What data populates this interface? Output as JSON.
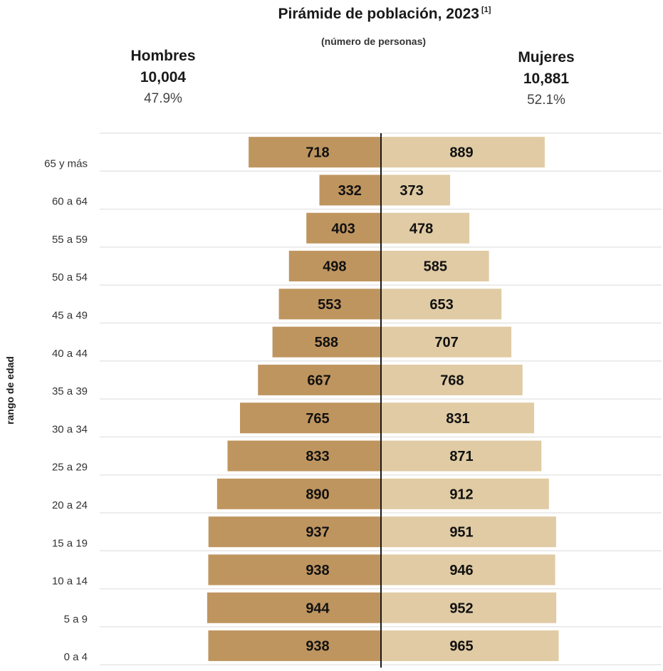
{
  "title": "Pirámide de población, 2023",
  "title_note": "[1]",
  "subtitle": "(número de personas)",
  "men": {
    "label": "Hombres",
    "total": "10,004",
    "percent": "47.9%"
  },
  "women": {
    "label": "Mujeres",
    "total": "10,881",
    "percent": "52.1%"
  },
  "colors": {
    "men": "#bf955f",
    "women": "#e0cba4",
    "grid": "#e6e6e6",
    "axis": "#1a1a1a"
  },
  "chart_data": {
    "type": "bar",
    "orientation": "horizontal-pyramid",
    "title": "Pirámide de población, 2023",
    "ylabel": "rango de edad",
    "categories": [
      "65 y más",
      "60 a 64",
      "55 a 59",
      "50 a 54",
      "45 a 49",
      "40 a 44",
      "35 a 39",
      "30 a 34",
      "25 a 29",
      "20 a 24",
      "15 a 19",
      "10 a 14",
      "5 a 9",
      "0 a 4"
    ],
    "series": [
      {
        "name": "Hombres",
        "values": [
          718,
          332,
          403,
          498,
          553,
          588,
          667,
          765,
          833,
          890,
          937,
          938,
          944,
          938
        ]
      },
      {
        "name": "Mujeres",
        "values": [
          889,
          373,
          478,
          585,
          653,
          707,
          768,
          831,
          871,
          912,
          951,
          946,
          952,
          965
        ]
      }
    ],
    "grid": true,
    "legend": "top"
  }
}
